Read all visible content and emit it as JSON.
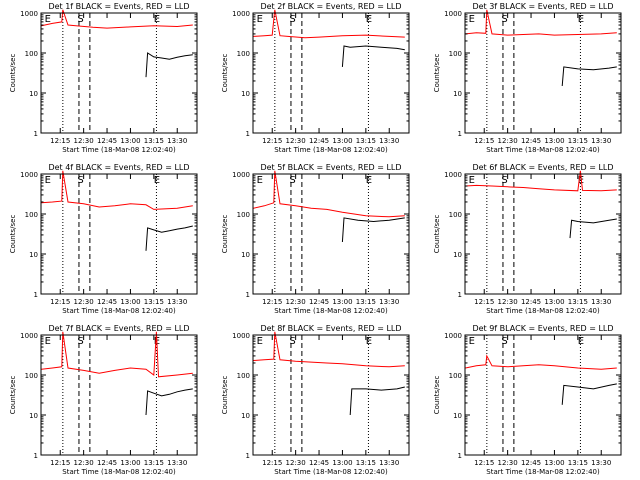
{
  "figure": {
    "xlabel": "Start Time (18-Mar-08 12:02:40)",
    "ylabel": "Counts/sec",
    "x_tick_labels": [
      "12:15",
      "12:30",
      "12:45",
      "13:00",
      "13:15",
      "13:30"
    ],
    "y_tick_labels": [
      "1",
      "10",
      "100",
      "1000"
    ],
    "marker_labels": [
      "E",
      "S",
      "E"
    ],
    "colors": {
      "events": "#000000",
      "lld": "#ff0000",
      "axes": "#000000"
    }
  },
  "chart_data": [
    {
      "type": "line",
      "title": "Det 1f BLACK = Events, RED = LLD",
      "xlabel": "Start Time (18-Mar-08 12:02:40)",
      "ylabel": "Counts/sec",
      "xlim": [
        "12:02:40",
        "13:42:40"
      ],
      "ylim": [
        1,
        1000
      ],
      "yscale": "log",
      "x_ticks": [
        "12:15",
        "12:30",
        "12:45",
        "13:00",
        "13:15",
        "13:30"
      ],
      "vertical_lines": [
        {
          "time": "12:16:40",
          "style": "dotted"
        },
        {
          "time": "12:27:00",
          "style": "dashed"
        },
        {
          "time": "12:34:00",
          "style": "dashed"
        },
        {
          "time": "13:16:40",
          "style": "dotted"
        }
      ],
      "markers": [
        {
          "label": "E",
          "time": "12:07:00"
        },
        {
          "label": "S",
          "time": "12:28:00"
        },
        {
          "label": "E",
          "time": "13:17:00"
        }
      ],
      "series": [
        {
          "name": "Events",
          "color": "black",
          "x": [
            "13:10",
            "13:11",
            "13:15",
            "13:20",
            "13:25",
            "13:30",
            "13:35",
            "13:40"
          ],
          "y": [
            25,
            100,
            80,
            75,
            70,
            78,
            85,
            90
          ]
        },
        {
          "name": "LLD",
          "color": "red",
          "x": [
            "12:03",
            "12:10",
            "12:16",
            "12:16:40",
            "12:20",
            "12:25",
            "12:36",
            "12:45",
            "13:00",
            "13:15",
            "13:30",
            "13:40"
          ],
          "y": [
            480,
            550,
            600,
            1200,
            500,
            480,
            440,
            420,
            450,
            480,
            460,
            500
          ]
        }
      ]
    },
    {
      "type": "line",
      "title": "Det 2f BLACK = Events, RED = LLD",
      "xlabel": "Start Time (18-Mar-08 12:02:40)",
      "ylabel": "Counts/sec",
      "xlim": [
        "12:02:40",
        "13:42:40"
      ],
      "ylim": [
        1,
        1000
      ],
      "yscale": "log",
      "x_ticks": [
        "12:15",
        "12:30",
        "12:45",
        "13:00",
        "13:15",
        "13:30"
      ],
      "vertical_lines": [
        {
          "time": "12:16:40",
          "style": "dotted"
        },
        {
          "time": "12:27:00",
          "style": "dashed"
        },
        {
          "time": "12:34:00",
          "style": "dashed"
        },
        {
          "time": "13:16:40",
          "style": "dotted"
        }
      ],
      "markers": [
        {
          "label": "E",
          "time": "12:07:00"
        },
        {
          "label": "S",
          "time": "12:28:00"
        },
        {
          "label": "E",
          "time": "13:17:00"
        }
      ],
      "series": [
        {
          "name": "Events",
          "color": "black",
          "x": [
            "13:00",
            "13:01",
            "13:05",
            "13:15",
            "13:25",
            "13:35",
            "13:40"
          ],
          "y": [
            45,
            150,
            140,
            150,
            140,
            130,
            120
          ]
        },
        {
          "name": "LLD",
          "color": "red",
          "x": [
            "12:03",
            "12:10",
            "12:15",
            "12:16:40",
            "12:20",
            "12:25",
            "12:36",
            "12:45",
            "13:00",
            "13:15",
            "13:30",
            "13:40"
          ],
          "y": [
            260,
            270,
            280,
            1200,
            270,
            260,
            240,
            250,
            270,
            280,
            260,
            250
          ]
        }
      ]
    },
    {
      "type": "line",
      "title": "Det 3f BLACK = Events, RED = LLD",
      "xlabel": "Start Time (18-Mar-08 12:02:40)",
      "ylabel": "Counts/sec",
      "xlim": [
        "12:02:40",
        "13:42:40"
      ],
      "ylim": [
        1,
        1000
      ],
      "yscale": "log",
      "x_ticks": [
        "12:15",
        "12:30",
        "12:45",
        "13:00",
        "13:15",
        "13:30"
      ],
      "vertical_lines": [
        {
          "time": "12:16:40",
          "style": "dotted"
        },
        {
          "time": "12:27:00",
          "style": "dashed"
        },
        {
          "time": "12:34:00",
          "style": "dashed"
        },
        {
          "time": "13:16:40",
          "style": "dotted"
        }
      ],
      "markers": [
        {
          "label": "E",
          "time": "12:07:00"
        },
        {
          "label": "S",
          "time": "12:28:00"
        },
        {
          "label": "E",
          "time": "13:17:00"
        }
      ],
      "series": [
        {
          "name": "Events",
          "color": "black",
          "x": [
            "13:05",
            "13:06",
            "13:15",
            "13:25",
            "13:35",
            "13:40"
          ],
          "y": [
            15,
            45,
            40,
            38,
            42,
            45
          ]
        },
        {
          "name": "LLD",
          "color": "red",
          "x": [
            "12:03",
            "12:10",
            "12:16",
            "12:16:40",
            "12:20",
            "12:30",
            "12:40",
            "12:50",
            "13:00",
            "13:15",
            "13:30",
            "13:40"
          ],
          "y": [
            300,
            320,
            310,
            1200,
            300,
            280,
            290,
            300,
            280,
            290,
            300,
            320
          ]
        }
      ]
    },
    {
      "type": "line",
      "title": "Det 4f BLACK = Events, RED = LLD",
      "xlabel": "Start Time (18-Mar-08 12:02:40)",
      "ylabel": "Counts/sec",
      "xlim": [
        "12:02:40",
        "13:42:40"
      ],
      "ylim": [
        1,
        1000
      ],
      "yscale": "log",
      "x_ticks": [
        "12:15",
        "12:30",
        "12:45",
        "13:00",
        "13:15",
        "13:30"
      ],
      "vertical_lines": [
        {
          "time": "12:16:40",
          "style": "dotted"
        },
        {
          "time": "12:27:00",
          "style": "dashed"
        },
        {
          "time": "12:34:00",
          "style": "dashed"
        },
        {
          "time": "13:16:40",
          "style": "dotted"
        }
      ],
      "markers": [
        {
          "label": "E",
          "time": "12:07:00"
        },
        {
          "label": "S",
          "time": "12:28:00"
        },
        {
          "label": "E",
          "time": "13:17:00"
        }
      ],
      "series": [
        {
          "name": "Events",
          "color": "black",
          "x": [
            "13:10",
            "13:11",
            "13:15",
            "13:20",
            "13:25",
            "13:30",
            "13:35",
            "13:40"
          ],
          "y": [
            12,
            45,
            40,
            35,
            38,
            42,
            45,
            50
          ]
        },
        {
          "name": "LLD",
          "color": "red",
          "x": [
            "12:03",
            "12:10",
            "12:16",
            "12:16:40",
            "12:20",
            "12:30",
            "12:40",
            "12:50",
            "13:00",
            "13:10",
            "13:15",
            "13:30",
            "13:40"
          ],
          "y": [
            190,
            200,
            210,
            1200,
            200,
            180,
            150,
            160,
            180,
            170,
            130,
            140,
            160
          ]
        }
      ]
    },
    {
      "type": "line",
      "title": "Det 5f BLACK = Events, RED = LLD",
      "xlabel": "Start Time (18-Mar-08 12:02:40)",
      "ylabel": "Counts/sec",
      "xlim": [
        "12:02:40",
        "13:42:40"
      ],
      "ylim": [
        1,
        1000
      ],
      "yscale": "log",
      "x_ticks": [
        "12:15",
        "12:30",
        "12:45",
        "13:00",
        "13:15",
        "13:30"
      ],
      "vertical_lines": [
        {
          "time": "12:16:40",
          "style": "dotted"
        },
        {
          "time": "12:27:00",
          "style": "dashed"
        },
        {
          "time": "12:34:00",
          "style": "dashed"
        },
        {
          "time": "13:16:40",
          "style": "dotted"
        }
      ],
      "markers": [
        {
          "label": "E",
          "time": "12:07:00"
        },
        {
          "label": "S",
          "time": "12:28:00"
        },
        {
          "label": "E",
          "time": "13:17:00"
        }
      ],
      "series": [
        {
          "name": "Events",
          "color": "black",
          "x": [
            "13:00",
            "13:01",
            "13:10",
            "13:20",
            "13:30",
            "13:40"
          ],
          "y": [
            20,
            80,
            70,
            65,
            70,
            80
          ]
        },
        {
          "name": "LLD",
          "color": "red",
          "x": [
            "12:03",
            "12:10",
            "12:16",
            "12:16:40",
            "12:20",
            "12:30",
            "12:40",
            "12:50",
            "13:00",
            "13:15",
            "13:30",
            "13:40"
          ],
          "y": [
            140,
            160,
            190,
            1200,
            180,
            160,
            140,
            130,
            110,
            90,
            85,
            90
          ]
        }
      ]
    },
    {
      "type": "line",
      "title": "Det 6f BLACK = Events, RED = LLD",
      "xlabel": "Start Time (18-Mar-08 12:02:40)",
      "ylabel": "Counts/sec",
      "xlim": [
        "12:02:40",
        "13:42:40"
      ],
      "ylim": [
        1,
        1000
      ],
      "yscale": "log",
      "x_ticks": [
        "12:15",
        "12:30",
        "12:45",
        "13:00",
        "13:15",
        "13:30"
      ],
      "vertical_lines": [
        {
          "time": "12:16:40",
          "style": "dotted"
        },
        {
          "time": "12:27:00",
          "style": "dashed"
        },
        {
          "time": "12:34:00",
          "style": "dashed"
        },
        {
          "time": "13:16:40",
          "style": "dotted"
        }
      ],
      "markers": [
        {
          "label": "E",
          "time": "12:07:00"
        },
        {
          "label": "S",
          "time": "12:28:00"
        },
        {
          "label": "E",
          "time": "13:17:00"
        }
      ],
      "series": [
        {
          "name": "Events",
          "color": "black",
          "x": [
            "13:10",
            "13:11",
            "13:15",
            "13:25",
            "13:35",
            "13:40"
          ],
          "y": [
            25,
            70,
            65,
            60,
            70,
            75
          ]
        },
        {
          "name": "LLD",
          "color": "red",
          "x": [
            "12:03",
            "12:10",
            "12:20",
            "12:30",
            "12:40",
            "12:50",
            "13:00",
            "13:15",
            "13:16:40",
            "13:18",
            "13:30",
            "13:40"
          ],
          "y": [
            500,
            520,
            500,
            480,
            460,
            430,
            400,
            380,
            1200,
            390,
            380,
            400
          ]
        }
      ]
    },
    {
      "type": "line",
      "title": "Det 7f BLACK = Events, RED = LLD",
      "xlabel": "Start Time (18-Mar-08 12:02:40)",
      "ylabel": "Counts/sec",
      "xlim": [
        "12:02:40",
        "13:42:40"
      ],
      "ylim": [
        1,
        1000
      ],
      "yscale": "log",
      "x_ticks": [
        "12:15",
        "12:30",
        "12:45",
        "13:00",
        "13:15",
        "13:30"
      ],
      "vertical_lines": [
        {
          "time": "12:16:40",
          "style": "dotted"
        },
        {
          "time": "12:27:00",
          "style": "dashed"
        },
        {
          "time": "12:34:00",
          "style": "dashed"
        },
        {
          "time": "13:16:40",
          "style": "dotted"
        }
      ],
      "markers": [
        {
          "label": "E",
          "time": "12:07:00"
        },
        {
          "label": "S",
          "time": "12:28:00"
        },
        {
          "label": "E",
          "time": "13:17:00"
        }
      ],
      "series": [
        {
          "name": "Events",
          "color": "black",
          "x": [
            "13:10",
            "13:11",
            "13:15",
            "13:20",
            "13:25",
            "13:30",
            "13:35",
            "13:40"
          ],
          "y": [
            10,
            40,
            35,
            30,
            33,
            38,
            42,
            45
          ]
        },
        {
          "name": "LLD",
          "color": "red",
          "x": [
            "12:03",
            "12:10",
            "12:16",
            "12:16:40",
            "12:20",
            "12:30",
            "12:40",
            "12:50",
            "13:00",
            "13:10",
            "13:15",
            "13:16:40",
            "13:18",
            "13:30",
            "13:40"
          ],
          "y": [
            140,
            150,
            160,
            1200,
            150,
            130,
            110,
            130,
            150,
            140,
            100,
            1200,
            90,
            100,
            110
          ]
        }
      ]
    },
    {
      "type": "line",
      "title": "Det 8f BLACK = Events, RED = LLD",
      "xlabel": "Start Time (18-Mar-08 12:02:40)",
      "ylabel": "Counts/sec",
      "xlim": [
        "12:02:40",
        "13:42:40"
      ],
      "ylim": [
        1,
        1000
      ],
      "yscale": "log",
      "x_ticks": [
        "12:15",
        "12:30",
        "12:45",
        "13:00",
        "13:15",
        "13:30"
      ],
      "vertical_lines": [
        {
          "time": "12:16:40",
          "style": "dotted"
        },
        {
          "time": "12:27:00",
          "style": "dashed"
        },
        {
          "time": "12:34:00",
          "style": "dashed"
        },
        {
          "time": "13:16:40",
          "style": "dotted"
        }
      ],
      "markers": [
        {
          "label": "E",
          "time": "12:07:00"
        },
        {
          "label": "S",
          "time": "12:28:00"
        },
        {
          "label": "E",
          "time": "13:17:00"
        }
      ],
      "series": [
        {
          "name": "Events",
          "color": "black",
          "x": [
            "13:05",
            "13:06",
            "13:15",
            "13:25",
            "13:35",
            "13:40"
          ],
          "y": [
            10,
            45,
            45,
            42,
            45,
            50
          ]
        },
        {
          "name": "LLD",
          "color": "red",
          "x": [
            "12:03",
            "12:10",
            "12:16",
            "12:16:40",
            "12:20",
            "12:30",
            "12:40",
            "12:50",
            "13:00",
            "13:15",
            "13:30",
            "13:40"
          ],
          "y": [
            230,
            240,
            250,
            1200,
            240,
            220,
            210,
            200,
            190,
            170,
            160,
            170
          ]
        }
      ]
    },
    {
      "type": "line",
      "title": "Det 9f BLACK = Events, RED = LLD",
      "xlabel": "Start Time (18-Mar-08 12:02:40)",
      "ylabel": "Counts/sec",
      "xlim": [
        "12:02:40",
        "13:42:40"
      ],
      "ylim": [
        1,
        1000
      ],
      "yscale": "log",
      "x_ticks": [
        "12:15",
        "12:30",
        "12:45",
        "13:00",
        "13:15",
        "13:30"
      ],
      "vertical_lines": [
        {
          "time": "12:16:40",
          "style": "dotted"
        },
        {
          "time": "12:27:00",
          "style": "dashed"
        },
        {
          "time": "12:34:00",
          "style": "dashed"
        },
        {
          "time": "13:16:40",
          "style": "dotted"
        }
      ],
      "markers": [
        {
          "label": "E",
          "time": "12:07:00"
        },
        {
          "label": "S",
          "time": "12:28:00"
        },
        {
          "label": "E",
          "time": "13:17:00"
        }
      ],
      "series": [
        {
          "name": "Events",
          "color": "black",
          "x": [
            "13:05",
            "13:06",
            "13:15",
            "13:25",
            "13:35",
            "13:40"
          ],
          "y": [
            18,
            55,
            50,
            45,
            55,
            60
          ]
        },
        {
          "name": "LLD",
          "color": "red",
          "x": [
            "12:03",
            "12:10",
            "12:16",
            "12:16:40",
            "12:20",
            "12:30",
            "12:40",
            "12:50",
            "13:00",
            "13:15",
            "13:30",
            "13:40"
          ],
          "y": [
            150,
            170,
            180,
            300,
            170,
            160,
            170,
            180,
            170,
            150,
            140,
            150
          ]
        }
      ]
    }
  ]
}
